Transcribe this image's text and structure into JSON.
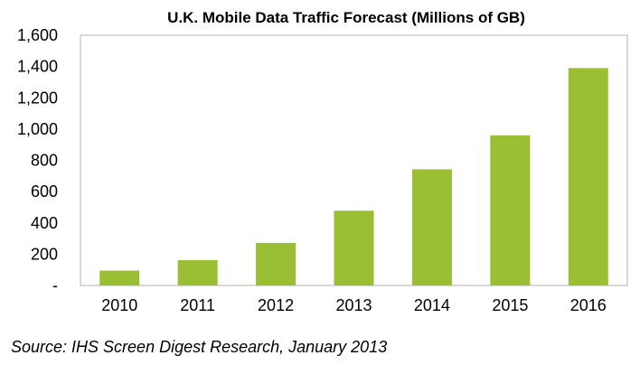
{
  "chart_data": {
    "type": "bar",
    "title": "U.K. Mobile Data Traffic Forecast  (Millions of GB)",
    "xlabel": "",
    "ylabel": "",
    "categories": [
      "2010",
      "2011",
      "2012",
      "2013",
      "2014",
      "2015",
      "2016"
    ],
    "values": [
      95,
      162,
      272,
      478,
      743,
      960,
      1390
    ],
    "ylim": [
      0,
      1600
    ],
    "y_ticks": [
      0,
      200,
      400,
      600,
      800,
      1000,
      1200,
      1400,
      1600
    ],
    "y_tick_labels": [
      "-",
      "200",
      "400",
      "600",
      "800",
      "1,000",
      "1,200",
      "1,400",
      "1,600"
    ],
    "grid": false,
    "legend": "none",
    "bar_color": "#9ABF34",
    "source": "Source: IHS Screen Digest Research, January 2013"
  }
}
